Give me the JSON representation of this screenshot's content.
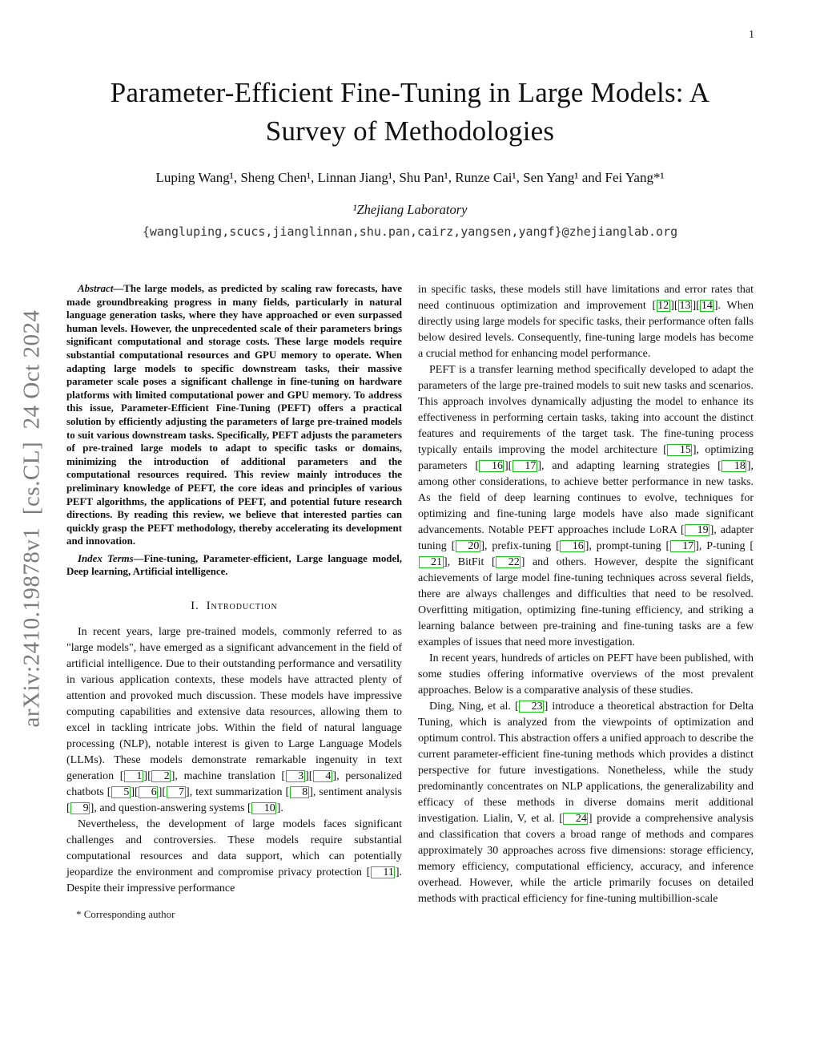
{
  "page_number": "1",
  "arxiv_watermark": "arXiv:2410.19878v1  [cs.CL]  24 Oct 2024",
  "colors": {
    "citation_box": "#19c519",
    "watermark": "#7b7b7b"
  },
  "header": {
    "title_line1": "Parameter-Efficient Fine-Tuning in Large Models: A",
    "title_line2": "Survey of Methodologies",
    "authors": "Luping Wang¹, Sheng Chen¹, Linnan Jiang¹, Shu Pan¹, Runze Cai¹, Sen Yang¹ and Fei Yang*¹",
    "affiliation": "¹Zhejiang Laboratory",
    "email": "{wangluping,scucs,jianglinnan,shu.pan,cairz,yangsen,yangf}@zhejianglab.org"
  },
  "abstract": {
    "label": "Abstract",
    "text": "—The large models, as predicted by scaling raw forecasts, have made groundbreaking progress in many fields, particularly in natural language generation tasks, where they have approached or even surpassed human levels. However, the unprecedented scale of their parameters brings significant computational and storage costs. These large models require substantial computational resources and GPU memory to operate. When adapting large models to specific downstream tasks, their massive parameter scale poses a significant challenge in fine-tuning on hardware platforms with limited computational power and GPU memory. To address this issue, Parameter-Efficient Fine-Tuning (PEFT) offers a practical solution by efficiently adjusting the parameters of large pre-trained models to suit various downstream tasks. Specifically, PEFT adjusts the parameters of pre-trained large models to adapt to specific tasks or domains, minimizing the introduction of additional parameters and the computational resources required. This review mainly introduces the preliminary knowledge of PEFT, the core ideas and principles of various PEFT algorithms, the applications of PEFT, and potential future research directions. By reading this review, we believe that interested parties can quickly grasp the PEFT methodology, thereby accelerating its development and innovation."
  },
  "index_terms": {
    "label": "Index Terms",
    "text": "—Fine-tuning, Parameter-efficient, Large language model, Deep learning, Artificial intelligence."
  },
  "introduction": {
    "heading_number": "I.",
    "heading_text": "Introduction",
    "left_paragraphs": [
      "In recent years, large pre-trained models, commonly referred to as \"large models\", have emerged as a significant advancement in the field of artificial intelligence. Due to their outstanding performance and versatility in various application contexts, these models have attracted plenty of attention and provoked much discussion. These models have impressive computing capabilities and extensive data resources, allowing them to excel in tackling intricate jobs. Within the field of natural language processing (NLP), notable interest is given to Large Language Models (LLMs). These models demonstrate remarkable ingenuity in text generation [1][2], machine translation [3][4], personalized chatbots [5][6][7], text summarization [8], sentiment analysis [9], and question-answering systems [10].",
      "Nevertheless, the development of large models faces significant challenges and controversies. These models require substantial computational resources and data support, which can potentially jeopardize the environment and compromise privacy protection [11]. Despite their impressive performance"
    ],
    "right_paragraphs": [
      "in specific tasks, these models still have limitations and error rates that need continuous optimization and improvement [12][13][14]. When directly using large models for specific tasks, their performance often falls below desired levels. Consequently, fine-tuning large models has become a crucial method for enhancing model performance.",
      "PEFT is a transfer learning method specifically developed to adapt the parameters of the large pre-trained models to suit new tasks and scenarios. This approach involves dynamically adjusting the model to enhance its effectiveness in performing certain tasks, taking into account the distinct features and requirements of the target task. The fine-tuning process typically entails improving the model architecture [15], optimizing parameters [16][17], and adapting learning strategies [18], among other considerations, to achieve better performance in new tasks. As the field of deep learning continues to evolve, techniques for optimizing and fine-tuning large models have also made significant advancements. Notable PEFT approaches include LoRA [19], adapter tuning [20], prefix-tuning [16], prompt-tuning [17], P-tuning [21], BitFit [22] and others. However, despite the significant achievements of large model fine-tuning techniques across several fields, there are always challenges and difficulties that need to be resolved. Overfitting mitigation, optimizing fine-tuning efficiency, and striking a learning balance between pre-training and fine-tuning tasks are a few examples of issues that need more investigation.",
      "In recent years, hundreds of articles on PEFT have been published, with some studies offering informative overviews of the most prevalent approaches. Below is a comparative analysis of these studies.",
      "Ding, Ning, et al. [23] introduce a theoretical abstraction for Delta Tuning, which is analyzed from the viewpoints of optimization and optimum control. This abstraction offers a unified approach to describe the current parameter-efficient fine-tuning methods which provides a distinct perspective for future investigations. Nonetheless, while the study predominantly concentrates on NLP applications, the generalizability and efficacy of these methods in diverse domains merit additional investigation. Lialin, V, et al. [24] provide a comprehensive analysis and classification that covers a broad range of methods and compares approximately 30 approaches across five dimensions: storage efficiency, memory efficiency, computational efficiency, accuracy, and inference overhead. However, while the article primarily focuses on detailed methods with practical efficiency for fine-tuning multibillion-scale"
    ]
  },
  "footnote": "* Corresponding author"
}
